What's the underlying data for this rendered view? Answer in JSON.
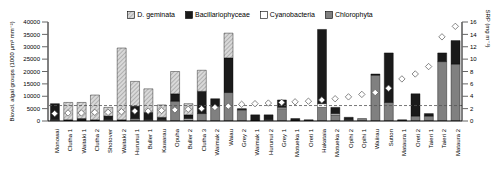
{
  "chart_data": {
    "type": "bar",
    "stacked": true,
    "grid": false,
    "legend": "top",
    "y_label": "Biovol. algal groups (1000 μm³ mm⁻²)",
    "y2_label": "SRP (mg m⁻³)",
    "categories": [
      "Monowai",
      "Clutha 1",
      "Waitaki 1",
      "Clutha 2",
      "Shotover",
      "Waitaki 2",
      "Hurunui 1",
      "Buller 1",
      "Kawarau",
      "Opuha",
      "Buller 2",
      "Clutha 3",
      "Waimak 2",
      "Waiau",
      "Grey 2",
      "Waimak 1",
      "Hurunui 2",
      "Grey 1",
      "Motueka 1",
      "Oreti 1",
      "Hakataia",
      "Motueka 2",
      "Opihi 2",
      "Opihi 1",
      "Waiirau",
      "Sutton",
      "Mataura 1",
      "Oreti 2",
      "Taieri 1",
      "Taieri 2",
      "Mataura 2"
    ],
    "ylim": [
      0,
      40000
    ],
    "yticks": [
      0,
      5000,
      10000,
      15000,
      20000,
      25000,
      30000,
      35000,
      40000
    ],
    "y2lim": [
      0,
      16
    ],
    "y2ticks": [
      0,
      2,
      4,
      6,
      8,
      10,
      12,
      14,
      16
    ],
    "series": [
      {
        "name": "D. geminata",
        "color": "#d9d9d9",
        "marker": "hatched",
        "values": [
          0,
          7000,
          6500,
          10000,
          3500,
          29000,
          10000,
          9500,
          5000,
          9000,
          4500,
          8500,
          0,
          10000,
          0,
          0,
          0,
          0,
          0,
          0,
          0,
          0,
          0,
          0,
          0,
          0,
          0,
          0,
          0,
          0,
          0
        ]
      },
      {
        "name": "Bacillariophyceae",
        "color": "#1a1a1a",
        "values": [
          6500,
          500,
          1000,
          500,
          1500,
          500,
          5000,
          3000,
          1000,
          3000,
          1500,
          9000,
          3000,
          14000,
          500,
          2500,
          2000,
          3000,
          1000,
          300,
          30000,
          2500,
          1000,
          0,
          500,
          20000,
          300,
          9000,
          1000,
          3500,
          9500
        ]
      },
      {
        "name": "Cyanobacteria",
        "color": "#ffffff",
        "values": [
          0,
          0,
          0,
          0,
          0,
          0,
          0,
          0,
          0,
          0,
          500,
          0,
          0,
          0,
          0,
          0,
          0,
          500,
          0,
          0,
          1500,
          500,
          0,
          0,
          0,
          0,
          0,
          0,
          0,
          0,
          0
        ]
      },
      {
        "name": "Chlorophyta",
        "color": "#808080",
        "values": [
          500,
          0,
          0,
          0,
          500,
          0,
          1000,
          500,
          500,
          8000,
          500,
          3000,
          6000,
          11500,
          4500,
          0,
          500,
          5000,
          0,
          200,
          5500,
          2500,
          500,
          1000,
          18500,
          7500,
          200,
          2000,
          2000,
          24000,
          23000
        ]
      },
      {
        "name": "SRP",
        "type": "scatter",
        "axis": "y2",
        "marker": "diamond",
        "color": "#ffffff",
        "values": [
          1.2,
          1.3,
          1.3,
          1.4,
          1.4,
          1.5,
          1.6,
          1.6,
          1.7,
          1.8,
          1.9,
          2.0,
          2.2,
          2.4,
          2.7,
          2.8,
          2.9,
          3.0,
          3.1,
          3.2,
          3.4,
          3.6,
          3.9,
          4.3,
          4.6,
          5.3,
          6.8,
          7.6,
          8.8,
          13.6,
          15.3
        ]
      }
    ],
    "reference_lines": [
      {
        "axis": "y2",
        "value": 2.5,
        "line_style": "dashed"
      }
    ]
  }
}
